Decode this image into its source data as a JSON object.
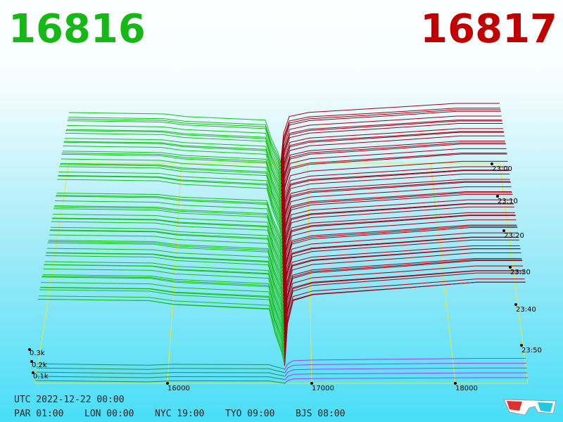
{
  "header": {
    "bid_price": "16816",
    "ask_price": "16817"
  },
  "depth_axis": {
    "labels": [
      "0.3k",
      "0.2k",
      "0.1k"
    ]
  },
  "price_axis": {
    "labels": [
      "16000",
      "17000",
      "18000"
    ]
  },
  "time_axis": {
    "labels": [
      "23:00",
      "23:10",
      "23:20",
      "23:30",
      "23:40",
      "23:50"
    ]
  },
  "footer": {
    "utc": "UTC 2022-12-22 00:00",
    "clocks": [
      "PAR 01:00",
      "LON 00:00",
      "NYC 19:00",
      "TYO 09:00",
      "BJS 08:00"
    ]
  }
}
